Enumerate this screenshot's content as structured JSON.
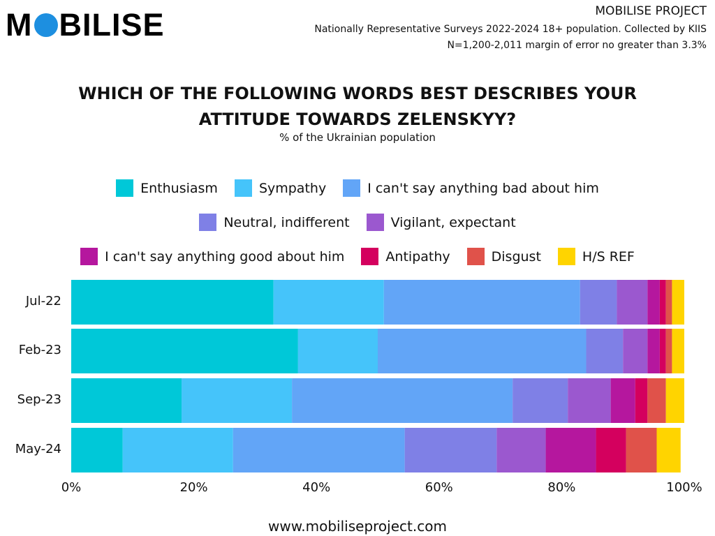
{
  "logo": {
    "text": "MOBILISE"
  },
  "header": {
    "org": "MOBILISE PROJECT",
    "line1": "Nationally Representative Surveys 2022-2024 18+ population. Collected by KIIS",
    "line2": "N=1,200-2,011 margin of error no greater than 3.3%"
  },
  "footer": "www.mobiliseproject.com",
  "chart_data": {
    "type": "bar",
    "orientation": "horizontal",
    "stacked": true,
    "title": "WHICH OF THE FOLLOWING WORDS BEST DESCRIBES YOUR ATTITUDE TOWARDS ZELENSKYY?",
    "subtitle": "% of the Ukrainian population",
    "categories": [
      "Jul-22",
      "Feb-23",
      "Sep-23",
      "May-24"
    ],
    "xlim": [
      0,
      100
    ],
    "xticks": [
      "0%",
      "20%",
      "40%",
      "60%",
      "80%",
      "100%"
    ],
    "legend_position": "top",
    "series": [
      {
        "name": "Enthusiasm",
        "color": "#00c8d8",
        "values": [
          33,
          37,
          18,
          8.4
        ]
      },
      {
        "name": "Sympathy",
        "color": "#45c4fa",
        "values": [
          18,
          13,
          18,
          18
        ]
      },
      {
        "name": "I can't say anything bad about him",
        "color": "#62a5f7",
        "values": [
          32,
          34,
          36,
          28
        ]
      },
      {
        "name": "Neutral, indifferent",
        "color": "#7f80e6",
        "values": [
          6,
          6,
          9,
          15
        ]
      },
      {
        "name": "Vigilant, expectant",
        "color": "#9b58cf",
        "values": [
          5,
          4,
          7,
          8
        ]
      },
      {
        "name": "I can't say anything good about him",
        "color": "#b5179e",
        "values": [
          2,
          2,
          4,
          8.2
        ]
      },
      {
        "name": "Antipathy",
        "color": "#d4005e",
        "values": [
          1,
          1,
          2,
          4.9
        ]
      },
      {
        "name": "Disgust",
        "color": "#e0524a",
        "values": [
          1,
          1,
          3,
          5
        ]
      },
      {
        "name": "H/S REF",
        "color": "#ffd400",
        "values": [
          2,
          2,
          3,
          3.9
        ]
      }
    ]
  }
}
